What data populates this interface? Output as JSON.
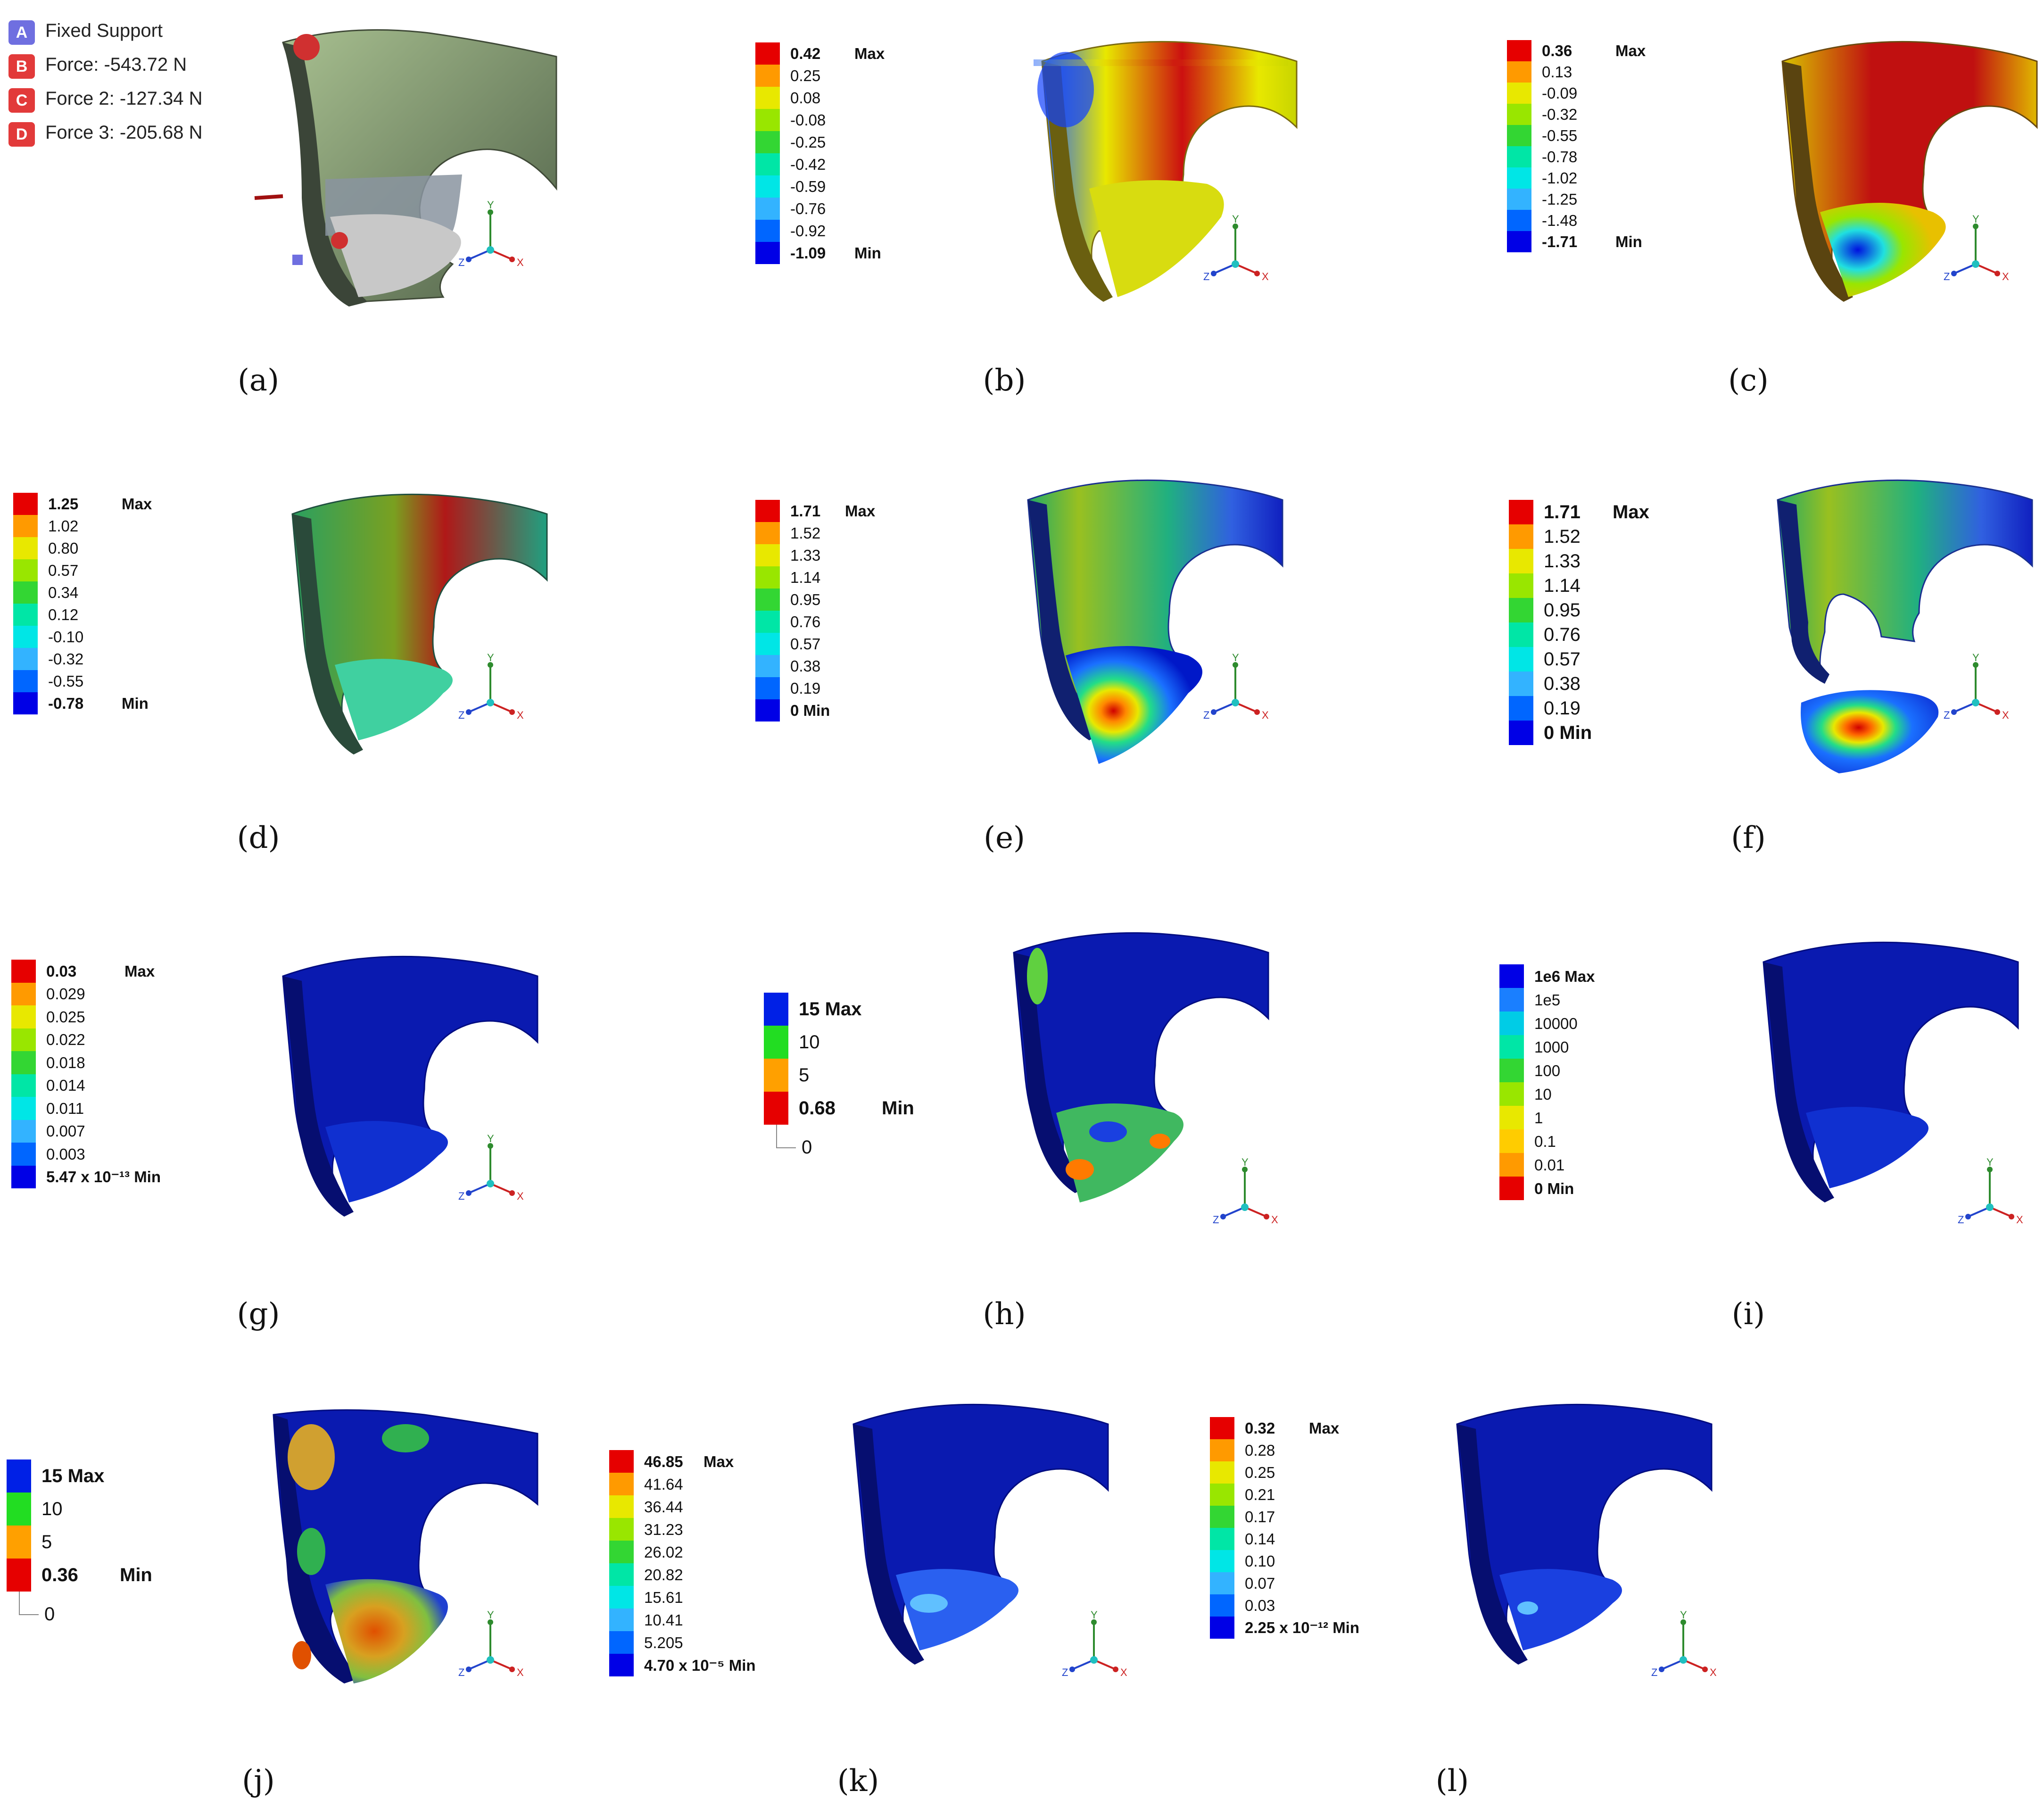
{
  "loads": [
    {
      "letter": "A",
      "label": "Fixed Support",
      "color": "#6f6fe0"
    },
    {
      "letter": "B",
      "label": "Force: -543.72 N",
      "color": "#e23a3a"
    },
    {
      "letter": "C",
      "label": "Force 2: -127.34 N",
      "color": "#e23a3a"
    },
    {
      "letter": "D",
      "label": "Force 3: -205.68 N",
      "color": "#e23a3a"
    }
  ],
  "captions": [
    "(a)",
    "(b)",
    "(c)",
    "(d)",
    "(e)",
    "(f)",
    "(g)",
    "(h)",
    "(i)",
    "(j)",
    "(k)",
    "(l)"
  ],
  "triad": {
    "y": "Y",
    "x": "X",
    "z": "Z"
  },
  "legends": [
    {
      "id": "b",
      "bands": [
        "#e60000",
        "#ff9a00",
        "#e8e800",
        "#99e600",
        "#33d633",
        "#00e6a6",
        "#00e6e6",
        "#33b3ff",
        "#0066ff",
        "#0000e6"
      ],
      "labels": [
        "0.42",
        "0.25",
        "0.08",
        "-0.08",
        "-0.25",
        "-0.42",
        "-0.59",
        "-0.76",
        "-0.92",
        "-1.09"
      ],
      "top_tag": "Max",
      "bottom_tag": "Min"
    },
    {
      "id": "c",
      "bands": [
        "#e60000",
        "#ff9a00",
        "#e8e800",
        "#99e600",
        "#33d633",
        "#00e6a6",
        "#00e6e6",
        "#33b3ff",
        "#0066ff",
        "#0000e6"
      ],
      "labels": [
        "0.36",
        "0.13",
        "-0.09",
        "-0.32",
        "-0.55",
        "-0.78",
        "-1.02",
        "-1.25",
        "-1.48",
        "-1.71"
      ],
      "top_tag": "Max",
      "bottom_tag": "Min"
    },
    {
      "id": "d",
      "bands": [
        "#e60000",
        "#ff9a00",
        "#e8e800",
        "#99e600",
        "#33d633",
        "#00e6a6",
        "#00e6e6",
        "#33b3ff",
        "#0066ff",
        "#0000e6"
      ],
      "labels": [
        "1.25",
        "1.02",
        "0.80",
        "0.57",
        "0.34",
        "0.12",
        "-0.10",
        "-0.32",
        "-0.55",
        "-0.78"
      ],
      "top_tag": "Max",
      "bottom_tag": "Min"
    },
    {
      "id": "e",
      "bands": [
        "#e60000",
        "#ff9a00",
        "#e8e800",
        "#99e600",
        "#33d633",
        "#00e6a6",
        "#00e6e6",
        "#33b3ff",
        "#0066ff",
        "#0000e6"
      ],
      "labels": [
        "1.71",
        "1.52",
        "1.33",
        "1.14",
        "0.95",
        "0.76",
        "0.57",
        "0.38",
        "0.19",
        "0 Min"
      ],
      "top_tag": "Max",
      "bottom_tag": ""
    },
    {
      "id": "f",
      "bands": [
        "#e60000",
        "#ff9a00",
        "#e8e800",
        "#99e600",
        "#33d633",
        "#00e6a6",
        "#00e6e6",
        "#33b3ff",
        "#0066ff",
        "#0000e6"
      ],
      "labels": [
        "1.71",
        "1.52",
        "1.33",
        "1.14",
        "0.95",
        "0.76",
        "0.57",
        "0.38",
        "0.19",
        "0 Min"
      ],
      "top_tag": "Max",
      "bottom_tag": ""
    },
    {
      "id": "g",
      "bands": [
        "#e60000",
        "#ff9a00",
        "#e8e800",
        "#99e600",
        "#33d633",
        "#00e6a6",
        "#00e6e6",
        "#33b3ff",
        "#0066ff",
        "#0000e6"
      ],
      "labels": [
        "0.03",
        "0.029",
        "0.025",
        "0.022",
        "0.018",
        "0.014",
        "0.011",
        "0.007",
        "0.003",
        "5.47 x 10⁻¹³ Min"
      ],
      "top_tag": "Max",
      "bottom_tag": ""
    },
    {
      "id": "h",
      "bands": [
        "#0020e6",
        "#22dd22",
        "#ffa000",
        "#e60000"
      ],
      "labels": [
        "15 Max",
        "10",
        "5",
        "0.68"
      ],
      "top_tag": "",
      "bottom_tag": "Min",
      "extra": "0"
    },
    {
      "id": "i",
      "bands": [
        "#0000e6",
        "#1a7fff",
        "#00cce6",
        "#00e6a6",
        "#33d633",
        "#99e600",
        "#e8e800",
        "#ffcc00",
        "#ff9a00",
        "#e60000"
      ],
      "labels": [
        "1e6 Max",
        "1e5",
        "10000",
        "1000",
        "100",
        "10",
        "1",
        "0.1",
        "0.01",
        "0 Min"
      ],
      "top_tag": "",
      "bottom_tag": ""
    },
    {
      "id": "j",
      "bands": [
        "#0020e6",
        "#22dd22",
        "#ffa000",
        "#e60000"
      ],
      "labels": [
        "15 Max",
        "10",
        "5",
        "0.36"
      ],
      "top_tag": "",
      "bottom_tag": "Min",
      "extra": "0"
    },
    {
      "id": "k",
      "bands": [
        "#e60000",
        "#ff9a00",
        "#e8e800",
        "#99e600",
        "#33d633",
        "#00e6a6",
        "#00e6e6",
        "#33b3ff",
        "#0066ff",
        "#0000e6"
      ],
      "labels": [
        "46.85",
        "41.64",
        "36.44",
        "31.23",
        "26.02",
        "20.82",
        "15.61",
        "10.41",
        "5.205",
        "4.70 x 10⁻⁵ Min"
      ],
      "top_tag": "Max",
      "bottom_tag": ""
    },
    {
      "id": "l",
      "bands": [
        "#e60000",
        "#ff9a00",
        "#e8e800",
        "#99e600",
        "#33d633",
        "#00e6a6",
        "#00e6e6",
        "#33b3ff",
        "#0066ff",
        "#0000e6"
      ],
      "labels": [
        "0.32",
        "0.28",
        "0.25",
        "0.21",
        "0.17",
        "0.14",
        "0.10",
        "0.07",
        "0.03",
        "2.25 x 10⁻¹² Min"
      ],
      "top_tag": "Max",
      "bottom_tag": ""
    }
  ],
  "colors": {
    "load_box_blue": "#6f6fe0",
    "load_box_red": "#e23a3a",
    "triad_y": "#2e8b2e",
    "triad_x": "#cc2222",
    "triad_z": "#2244cc"
  }
}
